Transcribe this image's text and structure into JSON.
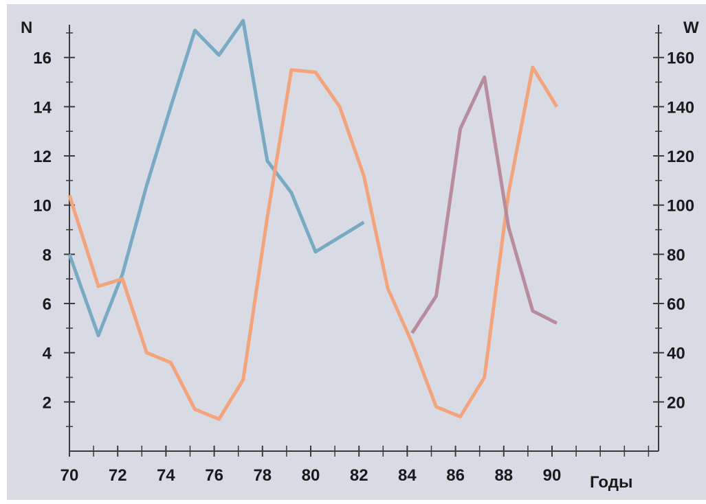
{
  "chart_data": {
    "type": "line",
    "colors": {
      "panel_background": "#d8dbe4",
      "axis": "#3a3a3a",
      "blue_series": "#79a9c3",
      "orange_series": "#f3a47c",
      "purple_series": "#b78c9d"
    },
    "xlabel": "Годы",
    "ylabel_left": "N",
    "ylabel_right": "W",
    "xlim": [
      70,
      90
    ],
    "x_ticks": [
      70,
      72,
      74,
      76,
      78,
      80,
      82,
      84,
      86,
      88,
      90
    ],
    "ylim_left": [
      0,
      17.5
    ],
    "y_ticks_left": [
      2,
      4,
      6,
      8,
      10,
      12,
      14,
      16
    ],
    "ylim_right": [
      0,
      175
    ],
    "y_ticks_right": [
      20,
      40,
      60,
      80,
      100,
      120,
      140,
      160
    ],
    "grid": false,
    "series": [
      {
        "axis": "left",
        "color": "blue_series",
        "x": [
          70,
          71.2,
          72.2,
          73.2,
          74.2,
          75.2,
          76.2,
          77.2,
          78.2,
          79.2,
          80.2,
          81.2,
          82.2
        ],
        "y": [
          8.0,
          4.7,
          7.2,
          10.8,
          14.0,
          17.1,
          16.1,
          17.5,
          11.8,
          10.5,
          8.1,
          8.7,
          9.3
        ]
      },
      {
        "axis": "right",
        "color": "orange_series",
        "x": [
          70,
          71.2,
          72.2,
          73.2,
          74.2,
          75.2,
          76.2,
          77.2,
          78.2,
          79.2,
          80.2,
          81.2,
          82.2,
          83.2,
          84.2,
          85.2,
          86.2,
          87.2,
          88.2,
          89.2,
          90.2
        ],
        "y": [
          104,
          67,
          70,
          40,
          36,
          17,
          13,
          29,
          95,
          155,
          154,
          140,
          112,
          66,
          44,
          18,
          14,
          30,
          105,
          156,
          140
        ]
      },
      {
        "axis": "right",
        "color": "purple_series",
        "x": [
          84.2,
          85.2,
          86.2,
          87.2,
          88.2,
          89.2,
          90.2
        ],
        "y": [
          48,
          63,
          131,
          152,
          91,
          57,
          52
        ]
      }
    ]
  }
}
